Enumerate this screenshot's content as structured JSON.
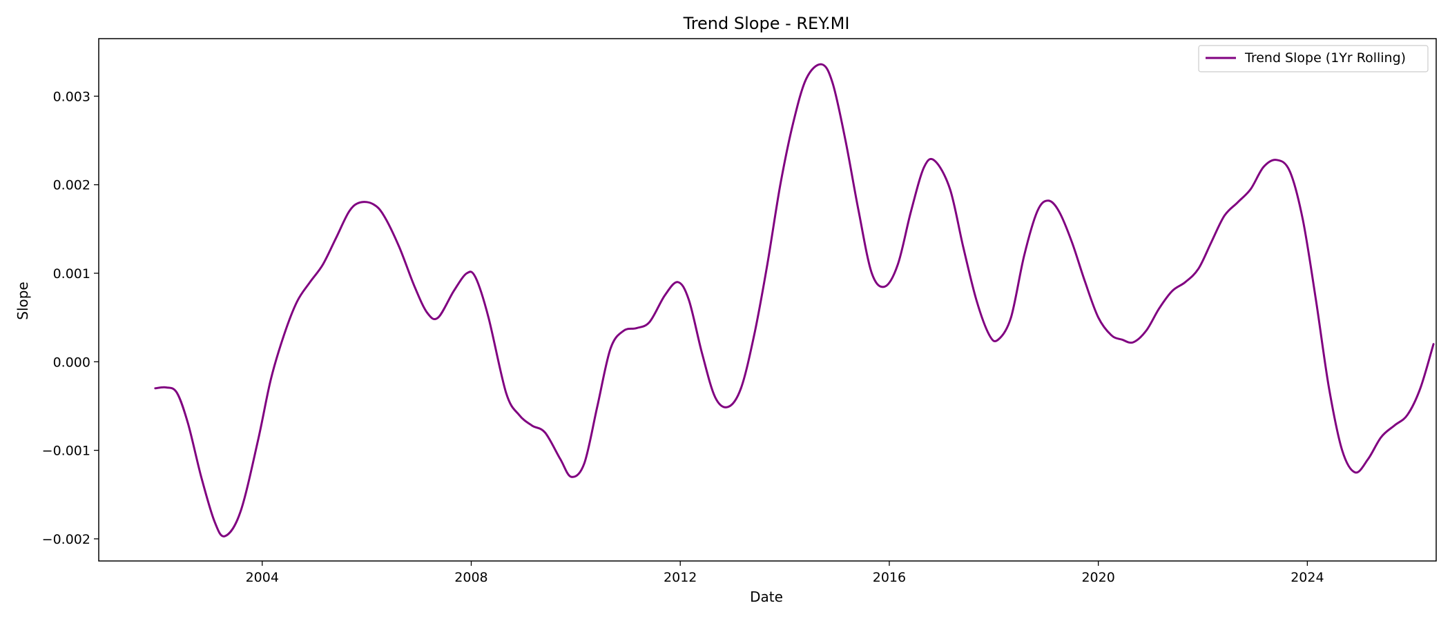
{
  "chart_data": {
    "type": "line",
    "title": "Trend Slope - REY.MI",
    "xlabel": "Date",
    "ylabel": "Slope",
    "x_tick_labels": [
      "2004",
      "2008",
      "2012",
      "2016",
      "2020",
      "2024"
    ],
    "y_tick_labels": [
      "−0.002",
      "−0.001",
      "0.000",
      "0.001",
      "0.002",
      "0.003"
    ],
    "xlim": [
      "2000-11-15",
      "2026-06-20"
    ],
    "ylim": [
      -0.00225,
      0.00365
    ],
    "legend_position": "upper right",
    "grid": false,
    "series": [
      {
        "name": "Trend Slope (1Yr Rolling)",
        "color": "#800080",
        "points": [
          [
            "2001-12-15",
            -0.0003
          ],
          [
            "2002-03-01",
            -0.00029
          ],
          [
            "2002-05-15",
            -0.00035
          ],
          [
            "2002-08-01",
            -0.0007
          ],
          [
            "2002-11-01",
            -0.0013
          ],
          [
            "2003-02-01",
            -0.0018
          ],
          [
            "2003-04-15",
            -0.00197
          ],
          [
            "2003-08-01",
            -0.0017
          ],
          [
            "2003-12-01",
            -0.0009
          ],
          [
            "2004-03-01",
            -0.0002
          ],
          [
            "2004-06-01",
            0.0003
          ],
          [
            "2004-09-01",
            0.00068
          ],
          [
            "2004-12-01",
            0.0009
          ],
          [
            "2005-03-01",
            0.0011
          ],
          [
            "2005-06-01",
            0.0014
          ],
          [
            "2005-09-01",
            0.0017
          ],
          [
            "2005-11-15",
            0.0018
          ],
          [
            "2006-02-15",
            0.00178
          ],
          [
            "2006-05-01",
            0.00165
          ],
          [
            "2006-08-15",
            0.0013
          ],
          [
            "2006-12-01",
            0.00085
          ],
          [
            "2007-03-01",
            0.00055
          ],
          [
            "2007-05-15",
            0.0005
          ],
          [
            "2007-09-01",
            0.0008
          ],
          [
            "2007-12-01",
            0.001
          ],
          [
            "2008-02-01",
            0.00095
          ],
          [
            "2008-05-01",
            0.0005
          ],
          [
            "2008-09-01",
            -0.00035
          ],
          [
            "2008-12-01",
            -0.0006
          ],
          [
            "2009-03-01",
            -0.00072
          ],
          [
            "2009-06-01",
            -0.0008
          ],
          [
            "2009-09-15",
            -0.0011
          ],
          [
            "2009-12-01",
            -0.0013
          ],
          [
            "2010-03-01",
            -0.00115
          ],
          [
            "2010-06-01",
            -0.0005
          ],
          [
            "2010-09-01",
            0.00015
          ],
          [
            "2010-12-01",
            0.00035
          ],
          [
            "2011-03-01",
            0.00038
          ],
          [
            "2011-06-01",
            0.00045
          ],
          [
            "2011-09-15",
            0.00075
          ],
          [
            "2011-12-15",
            0.0009
          ],
          [
            "2012-03-01",
            0.0007
          ],
          [
            "2012-06-01",
            0.0001
          ],
          [
            "2012-09-01",
            -0.0004
          ],
          [
            "2012-12-01",
            -0.00051
          ],
          [
            "2013-03-01",
            -0.0003
          ],
          [
            "2013-06-01",
            0.0003
          ],
          [
            "2013-09-01",
            0.0011
          ],
          [
            "2013-12-01",
            0.002
          ],
          [
            "2014-03-01",
            0.0027
          ],
          [
            "2014-06-01",
            0.0032
          ],
          [
            "2014-09-15",
            0.00336
          ],
          [
            "2014-12-01",
            0.00315
          ],
          [
            "2015-03-01",
            0.0025
          ],
          [
            "2015-06-01",
            0.0017
          ],
          [
            "2015-09-01",
            0.001
          ],
          [
            "2015-12-01",
            0.00085
          ],
          [
            "2016-03-01",
            0.0011
          ],
          [
            "2016-06-01",
            0.0017
          ],
          [
            "2016-09-01",
            0.0022
          ],
          [
            "2016-11-15",
            0.00227
          ],
          [
            "2017-03-01",
            0.00195
          ],
          [
            "2017-06-01",
            0.0013
          ],
          [
            "2017-09-01",
            0.0007
          ],
          [
            "2017-12-01",
            0.0003
          ],
          [
            "2018-02-01",
            0.00025
          ],
          [
            "2018-05-01",
            0.0005
          ],
          [
            "2018-08-01",
            0.0012
          ],
          [
            "2018-11-01",
            0.0017
          ],
          [
            "2019-01-15",
            0.00182
          ],
          [
            "2019-04-01",
            0.0017
          ],
          [
            "2019-07-01",
            0.00135
          ],
          [
            "2019-10-01",
            0.0009
          ],
          [
            "2020-01-01",
            0.0005
          ],
          [
            "2020-04-01",
            0.0003
          ],
          [
            "2020-06-15",
            0.00025
          ],
          [
            "2020-09-01",
            0.00022
          ],
          [
            "2020-12-01",
            0.00035
          ],
          [
            "2021-03-01",
            0.0006
          ],
          [
            "2021-06-01",
            0.0008
          ],
          [
            "2021-09-01",
            0.0009
          ],
          [
            "2021-12-01",
            0.00105
          ],
          [
            "2022-03-01",
            0.00135
          ],
          [
            "2022-06-01",
            0.00165
          ],
          [
            "2022-09-01",
            0.0018
          ],
          [
            "2022-12-01",
            0.00195
          ],
          [
            "2023-03-01",
            0.0022
          ],
          [
            "2023-06-01",
            0.00228
          ],
          [
            "2023-09-01",
            0.00215
          ],
          [
            "2023-12-01",
            0.0016
          ],
          [
            "2024-03-01",
            0.0007
          ],
          [
            "2024-06-01",
            -0.0003
          ],
          [
            "2024-09-01",
            -0.001
          ],
          [
            "2024-12-01",
            -0.00125
          ],
          [
            "2025-03-01",
            -0.0011
          ],
          [
            "2025-06-01",
            -0.00085
          ],
          [
            "2025-09-01",
            -0.00072
          ],
          [
            "2025-12-01",
            -0.0006
          ],
          [
            "2026-03-01",
            -0.0003
          ],
          [
            "2026-06-01",
            0.0002
          ]
        ]
      }
    ]
  }
}
